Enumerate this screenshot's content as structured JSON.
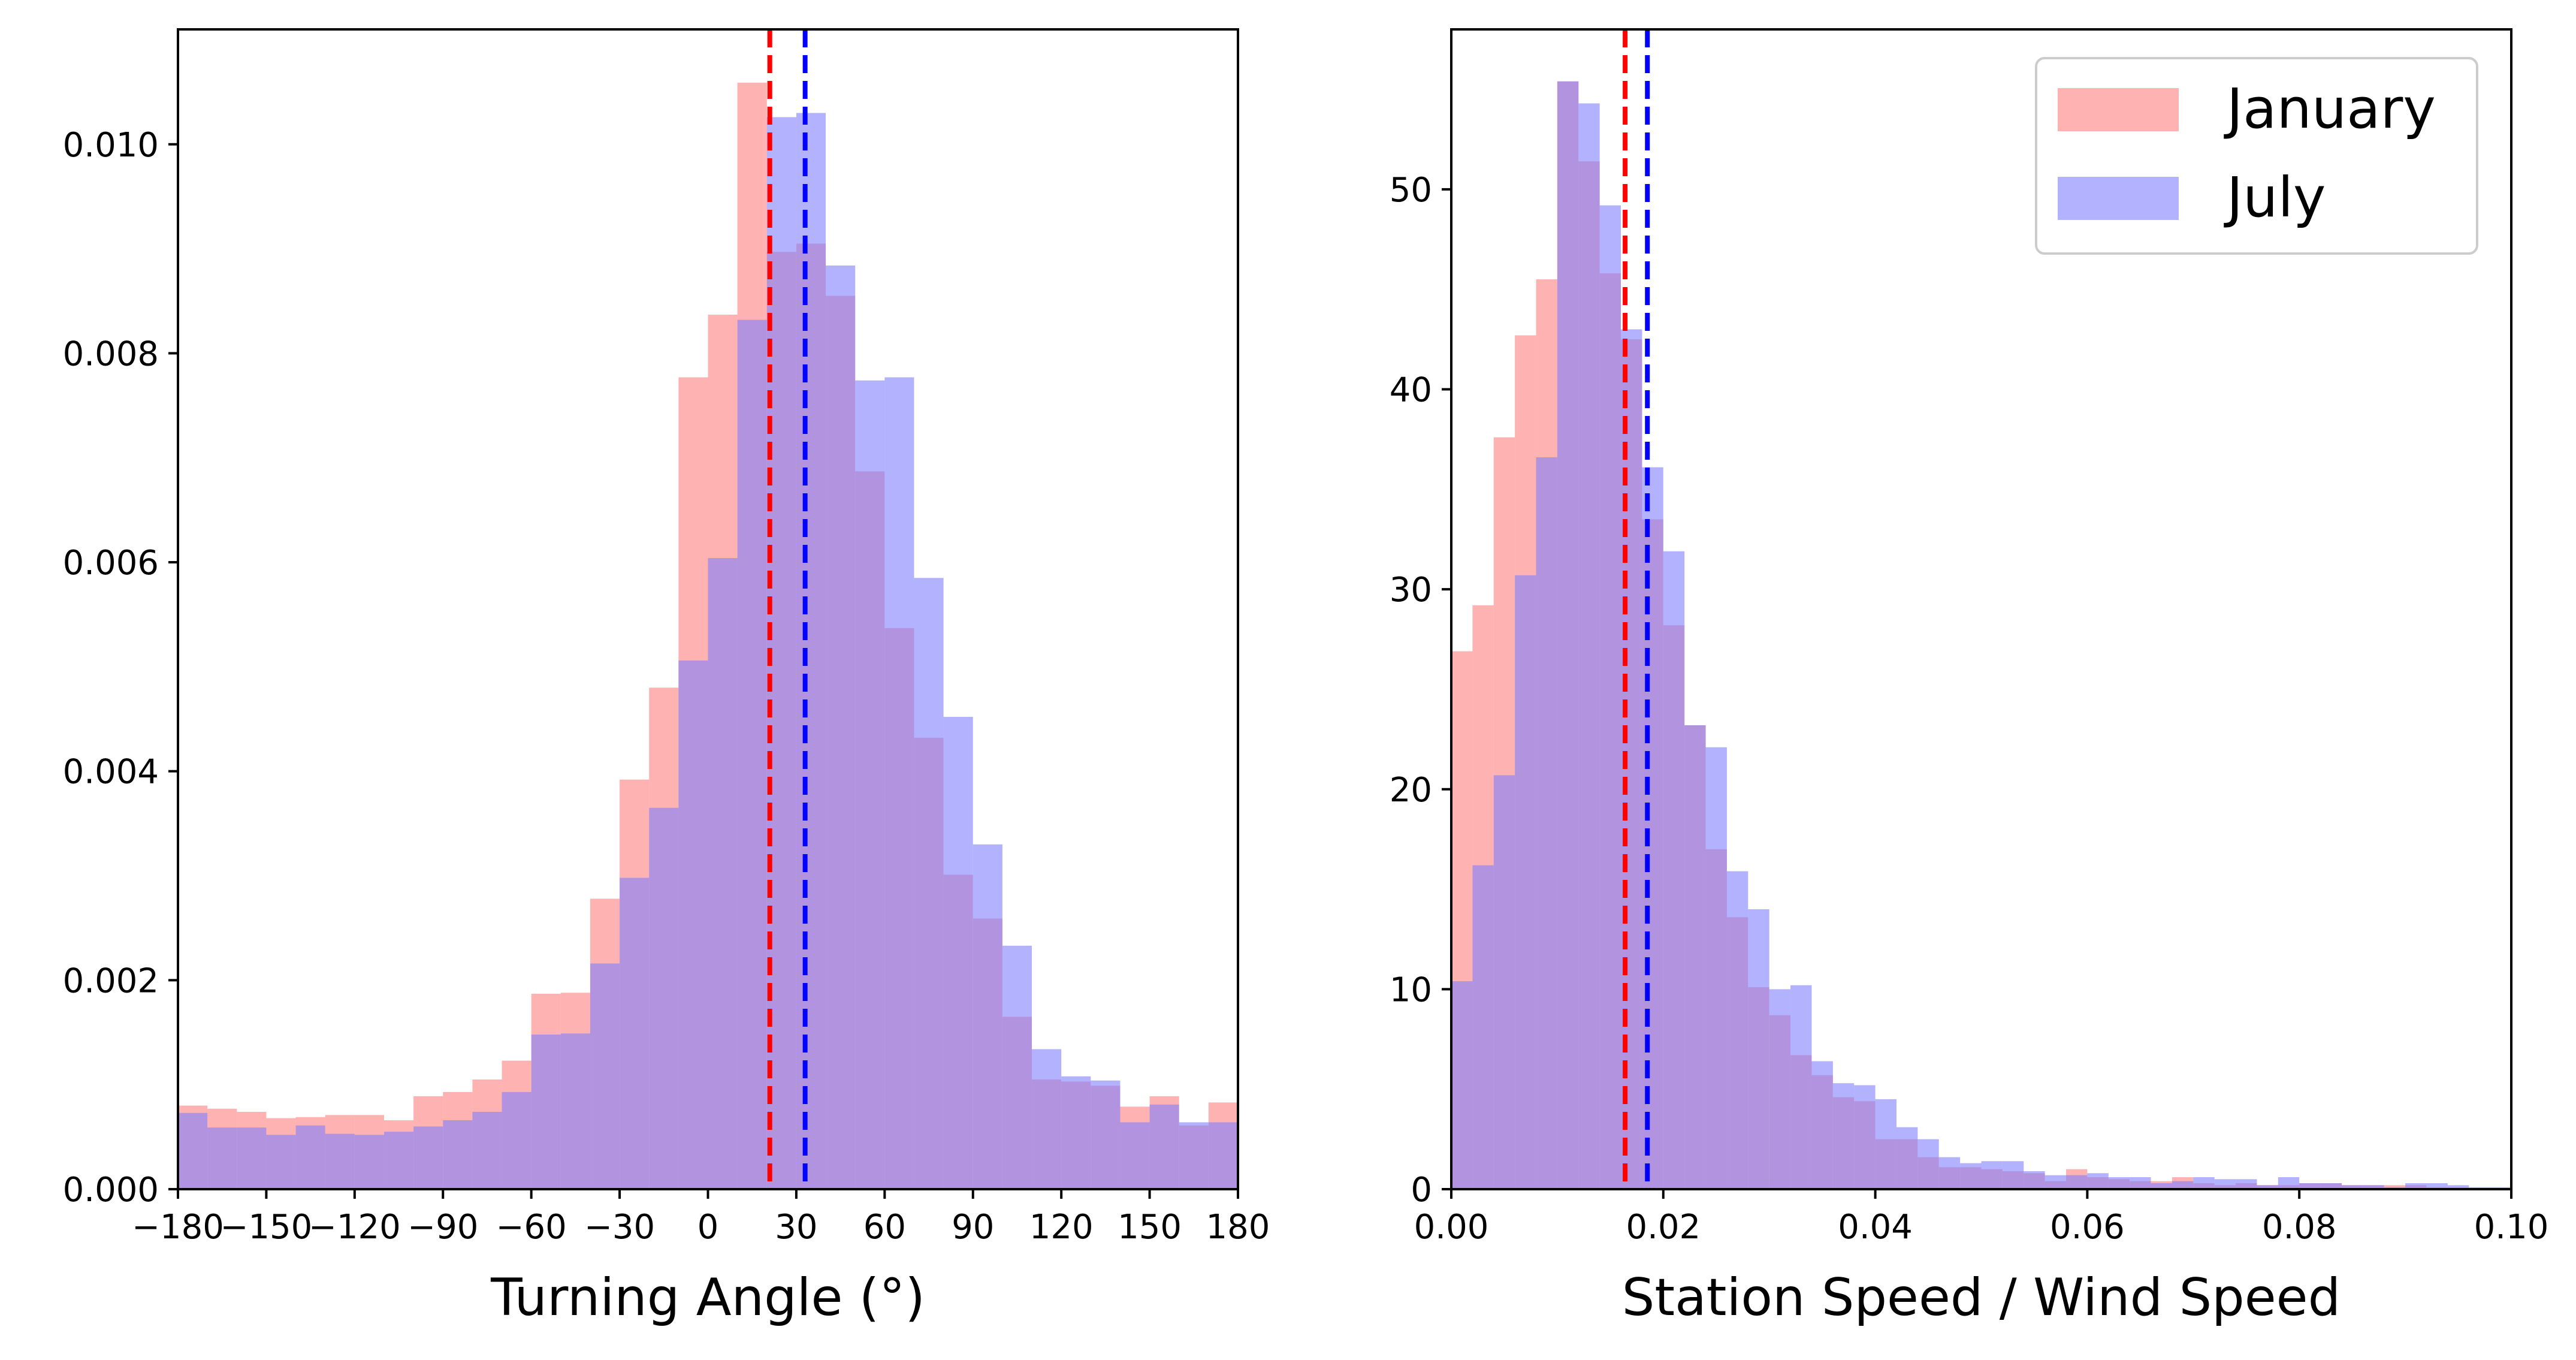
{
  "chart_data": [
    {
      "type": "histogram",
      "xlabel": "Turning Angle (°)",
      "ylabel": "",
      "xlim": [
        -180,
        180
      ],
      "ylim": [
        0,
        0.0111
      ],
      "x_ticks": [
        -180,
        -150,
        -120,
        -90,
        -60,
        -30,
        0,
        30,
        60,
        90,
        120,
        150,
        180
      ],
      "x_tick_labels": [
        "−180",
        "−150",
        "−120",
        "−90",
        "−60",
        "−30",
        "0",
        "30",
        "60",
        "90",
        "120",
        "150",
        "180"
      ],
      "y_ticks": [
        0,
        0.002,
        0.004,
        0.006,
        0.008,
        0.01
      ],
      "y_tick_labels": [
        "0.000",
        "0.002",
        "0.004",
        "0.006",
        "0.008",
        "0.010"
      ],
      "bin_start": -180,
      "bin_width": 10,
      "series": [
        {
          "name": "January",
          "color": "#ff7f7f",
          "opacity": 0.6,
          "values": [
            0.0008,
            0.00077,
            0.00074,
            0.00068,
            0.00069,
            0.00071,
            0.00071,
            0.00066,
            0.00089,
            0.00093,
            0.00105,
            0.00123,
            0.00187,
            0.00188,
            0.00278,
            0.00392,
            0.0048,
            0.00777,
            0.00837,
            0.01059,
            0.00897,
            0.00905,
            0.00855,
            0.00687,
            0.00537,
            0.00432,
            0.00301,
            0.00259,
            0.00165,
            0.00105,
            0.00103,
            0.00099,
            0.00079,
            0.00089,
            0.00061,
            0.00083
          ]
        },
        {
          "name": "July",
          "color": "#7f7fff",
          "opacity": 0.6,
          "values": [
            0.00073,
            0.00059,
            0.00059,
            0.00052,
            0.00061,
            0.00053,
            0.00052,
            0.00055,
            0.0006,
            0.00066,
            0.00074,
            0.00093,
            0.00148,
            0.00149,
            0.00216,
            0.00298,
            0.00365,
            0.00506,
            0.00604,
            0.00832,
            0.01026,
            0.0103,
            0.00884,
            0.00774,
            0.00777,
            0.00585,
            0.00452,
            0.0033,
            0.00233,
            0.00134,
            0.00108,
            0.00104,
            0.00064,
            0.00081,
            0.00064,
            0.00064
          ]
        }
      ],
      "vlines": [
        {
          "x": 21,
          "color": "#ff0000",
          "style": "dashed",
          "series": "January"
        },
        {
          "x": 33,
          "color": "#0000ff",
          "style": "dashed",
          "series": "July"
        }
      ]
    },
    {
      "type": "histogram",
      "xlabel": "Station Speed / Wind Speed",
      "ylabel": "",
      "xlim": [
        0,
        0.1
      ],
      "ylim": [
        0,
        58
      ],
      "x_ticks": [
        0,
        0.02,
        0.04,
        0.06,
        0.08,
        0.1
      ],
      "x_tick_labels": [
        "0.00",
        "0.02",
        "0.04",
        "0.06",
        "0.08",
        "0.10"
      ],
      "y_ticks": [
        0,
        10,
        20,
        30,
        40,
        50
      ],
      "y_tick_labels": [
        "0",
        "10",
        "20",
        "30",
        "40",
        "50"
      ],
      "bin_start": 0,
      "bin_width": 0.002,
      "series": [
        {
          "name": "January",
          "color": "#ff7f7f",
          "opacity": 0.6,
          "values": [
            26.9,
            29.2,
            37.6,
            42.7,
            45.5,
            55.4,
            51.4,
            45.8,
            42.5,
            33.5,
            28.2,
            23.2,
            17.0,
            13.6,
            10.1,
            8.7,
            6.7,
            5.7,
            4.6,
            4.4,
            2.5,
            2.5,
            1.6,
            1.1,
            1.1,
            1.0,
            0.9,
            0.8,
            0.4,
            1.0,
            0.6,
            0.5,
            0.4,
            0.4,
            0.6,
            0.3,
            0.2,
            0.3,
            0.2,
            0.2,
            0.3,
            0.3,
            0.2,
            0.2,
            0.2,
            0.2,
            0.1,
            0.1,
            0.0,
            0.0
          ],
          "visible_bars": [
            26.9,
            29.2,
            37.6,
            42.7,
            45.5,
            null,
            null,
            null,
            null,
            33.5,
            28.2
          ]
        },
        {
          "name": "July",
          "color": "#7f7fff",
          "opacity": 0.6,
          "values": [
            10.4,
            16.2,
            20.7,
            30.7,
            36.6,
            55.4,
            54.3,
            49.2,
            43.0,
            36.1,
            31.9,
            23.2,
            22.1,
            15.9,
            14.0,
            10.0,
            10.2,
            6.4,
            5.3,
            5.2,
            4.5,
            3.1,
            2.5,
            1.6,
            1.3,
            1.4,
            1.4,
            0.9,
            0.7,
            0.7,
            0.8,
            0.6,
            0.6,
            0.3,
            0.4,
            0.6,
            0.5,
            0.5,
            0.2,
            0.6,
            0.3,
            0.3,
            0.2,
            0.2,
            0.1,
            0.3,
            0.3,
            0.2,
            0.1,
            0.1
          ]
        }
      ],
      "vlines": [
        {
          "x": 0.0164,
          "color": "#ff0000",
          "style": "dashed",
          "series": "January"
        },
        {
          "x": 0.0185,
          "color": "#0000ff",
          "style": "dashed",
          "series": "July"
        }
      ],
      "legend": {
        "placement": "top-right",
        "entries": [
          "January",
          "July"
        ]
      }
    }
  ]
}
